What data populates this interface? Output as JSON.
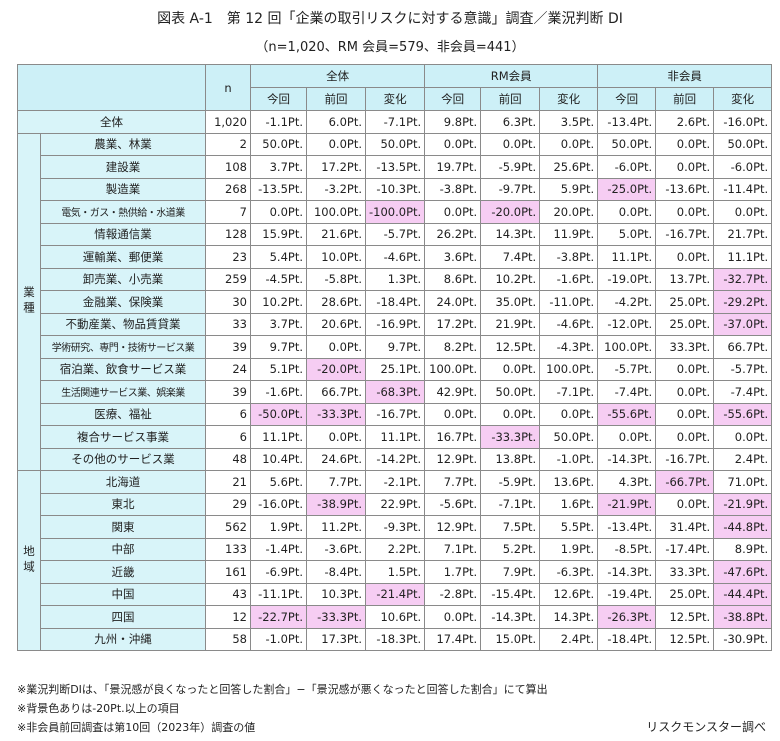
{
  "title": "図表 A-1　第 12 回「企業の取引リスクに対する意識」調査／業況判断 DI",
  "subtitle": "（n=1,020、RM 会員=579、非会員=441）",
  "table": {
    "highlight_color": "#f6cdf3",
    "header": {
      "n": "n",
      "groups": [
        "全体",
        "RM会員",
        "非会員"
      ],
      "sub": [
        "今回",
        "前回",
        "変化",
        "今回",
        "前回",
        "変化",
        "今回",
        "前回",
        "変化"
      ]
    },
    "total_row": {
      "label": "全体",
      "n": "1,020",
      "cells": [
        "-1.1Pt.",
        "6.0Pt.",
        "-7.1Pt.",
        "9.8Pt.",
        "6.3Pt.",
        "3.5Pt.",
        "-13.4Pt.",
        "2.6Pt.",
        "-16.0Pt."
      ]
    },
    "sections": [
      {
        "label": "業種",
        "rows": [
          {
            "label": "農業、林業",
            "n": "2",
            "cells": [
              "50.0Pt.",
              "0.0Pt.",
              "50.0Pt.",
              "0.0Pt.",
              "0.0Pt.",
              "0.0Pt.",
              "50.0Pt.",
              "0.0Pt.",
              "50.0Pt."
            ]
          },
          {
            "label": "建設業",
            "n": "108",
            "cells": [
              "3.7Pt.",
              "17.2Pt.",
              "-13.5Pt.",
              "19.7Pt.",
              "-5.9Pt.",
              "25.6Pt.",
              "-6.0Pt.",
              "0.0Pt.",
              "-6.0Pt."
            ]
          },
          {
            "label": "製造業",
            "n": "268",
            "cells": [
              "-13.5Pt.",
              "-3.2Pt.",
              "-10.3Pt.",
              "-3.8Pt.",
              "-9.7Pt.",
              "5.9Pt.",
              "-25.0Pt.",
              "-13.6Pt.",
              "-11.4Pt."
            ],
            "highlight": [
              6
            ]
          },
          {
            "label": "電気・ガス・熱供給・水道業",
            "n": "7",
            "cells": [
              "0.0Pt.",
              "100.0Pt.",
              "-100.0Pt.",
              "0.0Pt.",
              "-20.0Pt.",
              "20.0Pt.",
              "0.0Pt.",
              "0.0Pt.",
              "0.0Pt."
            ],
            "highlight": [
              2,
              4
            ]
          },
          {
            "label": "情報通信業",
            "n": "128",
            "cells": [
              "15.9Pt.",
              "21.6Pt.",
              "-5.7Pt.",
              "26.2Pt.",
              "14.3Pt.",
              "11.9Pt.",
              "5.0Pt.",
              "-16.7Pt.",
              "21.7Pt."
            ]
          },
          {
            "label": "運輸業、郵便業",
            "n": "23",
            "cells": [
              "5.4Pt.",
              "10.0Pt.",
              "-4.6Pt.",
              "3.6Pt.",
              "7.4Pt.",
              "-3.8Pt.",
              "11.1Pt.",
              "0.0Pt.",
              "11.1Pt."
            ]
          },
          {
            "label": "卸売業、小売業",
            "n": "259",
            "cells": [
              "-4.5Pt.",
              "-5.8Pt.",
              "1.3Pt.",
              "8.6Pt.",
              "10.2Pt.",
              "-1.6Pt.",
              "-19.0Pt.",
              "13.7Pt.",
              "-32.7Pt."
            ],
            "highlight": [
              8
            ]
          },
          {
            "label": "金融業、保険業",
            "n": "30",
            "cells": [
              "10.2Pt.",
              "28.6Pt.",
              "-18.4Pt.",
              "24.0Pt.",
              "35.0Pt.",
              "-11.0Pt.",
              "-4.2Pt.",
              "25.0Pt.",
              "-29.2Pt."
            ],
            "highlight": [
              8
            ]
          },
          {
            "label": "不動産業、物品賃貸業",
            "n": "33",
            "cells": [
              "3.7Pt.",
              "20.6Pt.",
              "-16.9Pt.",
              "17.2Pt.",
              "21.9Pt.",
              "-4.6Pt.",
              "-12.0Pt.",
              "25.0Pt.",
              "-37.0Pt."
            ],
            "highlight": [
              8
            ]
          },
          {
            "label": "学術研究、専門・技術サービス業",
            "n": "39",
            "cells": [
              "9.7Pt.",
              "0.0Pt.",
              "9.7Pt.",
              "8.2Pt.",
              "12.5Pt.",
              "-4.3Pt.",
              "100.0Pt.",
              "33.3Pt.",
              "66.7Pt."
            ]
          },
          {
            "label": "宿泊業、飲食サービス業",
            "n": "24",
            "cells": [
              "5.1Pt.",
              "-20.0Pt.",
              "25.1Pt.",
              "100.0Pt.",
              "0.0Pt.",
              "100.0Pt.",
              "-5.7Pt.",
              "0.0Pt.",
              "-5.7Pt."
            ],
            "highlight": [
              1
            ]
          },
          {
            "label": "生活関連サービス業、娯楽業",
            "n": "39",
            "cells": [
              "-1.6Pt.",
              "66.7Pt.",
              "-68.3Pt.",
              "42.9Pt.",
              "50.0Pt.",
              "-7.1Pt.",
              "-7.4Pt.",
              "0.0Pt.",
              "-7.4Pt."
            ],
            "highlight": [
              2
            ]
          },
          {
            "label": "医療、福祉",
            "n": "6",
            "cells": [
              "-50.0Pt.",
              "-33.3Pt.",
              "-16.7Pt.",
              "0.0Pt.",
              "0.0Pt.",
              "0.0Pt.",
              "-55.6Pt.",
              "0.0Pt.",
              "-55.6Pt."
            ],
            "highlight": [
              0,
              1,
              6,
              8
            ]
          },
          {
            "label": "複合サービス事業",
            "n": "6",
            "cells": [
              "11.1Pt.",
              "0.0Pt.",
              "11.1Pt.",
              "16.7Pt.",
              "-33.3Pt.",
              "50.0Pt.",
              "0.0Pt.",
              "0.0Pt.",
              "0.0Pt."
            ],
            "highlight": [
              4
            ]
          },
          {
            "label": "その他のサービス業",
            "n": "48",
            "cells": [
              "10.4Pt.",
              "24.6Pt.",
              "-14.2Pt.",
              "12.9Pt.",
              "13.8Pt.",
              "-1.0Pt.",
              "-14.3Pt.",
              "-16.7Pt.",
              "2.4Pt."
            ]
          }
        ]
      },
      {
        "label": "地域",
        "rows": [
          {
            "label": "北海道",
            "n": "21",
            "cells": [
              "5.6Pt.",
              "7.7Pt.",
              "-2.1Pt.",
              "7.7Pt.",
              "-5.9Pt.",
              "13.6Pt.",
              "4.3Pt.",
              "-66.7Pt.",
              "71.0Pt."
            ],
            "highlight": [
              7
            ]
          },
          {
            "label": "東北",
            "n": "29",
            "cells": [
              "-16.0Pt.",
              "-38.9Pt.",
              "22.9Pt.",
              "-5.6Pt.",
              "-7.1Pt.",
              "1.6Pt.",
              "-21.9Pt.",
              "0.0Pt.",
              "-21.9Pt."
            ],
            "highlight": [
              1,
              6,
              8
            ]
          },
          {
            "label": "関東",
            "n": "562",
            "cells": [
              "1.9Pt.",
              "11.2Pt.",
              "-9.3Pt.",
              "12.9Pt.",
              "7.5Pt.",
              "5.5Pt.",
              "-13.4Pt.",
              "31.4Pt.",
              "-44.8Pt."
            ],
            "highlight": [
              8
            ]
          },
          {
            "label": "中部",
            "n": "133",
            "cells": [
              "-1.4Pt.",
              "-3.6Pt.",
              "2.2Pt.",
              "7.1Pt.",
              "5.2Pt.",
              "1.9Pt.",
              "-8.5Pt.",
              "-17.4Pt.",
              "8.9Pt."
            ]
          },
          {
            "label": "近畿",
            "n": "161",
            "cells": [
              "-6.9Pt.",
              "-8.4Pt.",
              "1.5Pt.",
              "1.7Pt.",
              "7.9Pt.",
              "-6.3Pt.",
              "-14.3Pt.",
              "33.3Pt.",
              "-47.6Pt."
            ],
            "highlight": [
              8
            ]
          },
          {
            "label": "中国",
            "n": "43",
            "cells": [
              "-11.1Pt.",
              "10.3Pt.",
              "-21.4Pt.",
              "-2.8Pt.",
              "-15.4Pt.",
              "12.6Pt.",
              "-19.4Pt.",
              "25.0Pt.",
              "-44.4Pt."
            ],
            "highlight": [
              2,
              8
            ]
          },
          {
            "label": "四国",
            "n": "12",
            "cells": [
              "-22.7Pt.",
              "-33.3Pt.",
              "10.6Pt.",
              "0.0Pt.",
              "-14.3Pt.",
              "14.3Pt.",
              "-26.3Pt.",
              "12.5Pt.",
              "-38.8Pt."
            ],
            "highlight": [
              0,
              1,
              6,
              8
            ]
          },
          {
            "label": "九州・沖縄",
            "n": "58",
            "cells": [
              "-1.0Pt.",
              "17.3Pt.",
              "-18.3Pt.",
              "17.4Pt.",
              "15.0Pt.",
              "2.4Pt.",
              "-18.4Pt.",
              "12.5Pt.",
              "-30.9Pt."
            ]
          }
        ]
      }
    ]
  },
  "notes": [
    "※業況判断DIは、「景況感が良くなったと回答した割合」−「景況感が悪くなったと回答した割合」にて算出",
    "※背景色ありは-20Pt.以上の項目",
    "※非会員前回調査は第10回（2023年）調査の値"
  ],
  "source": "リスクモンスター調べ"
}
